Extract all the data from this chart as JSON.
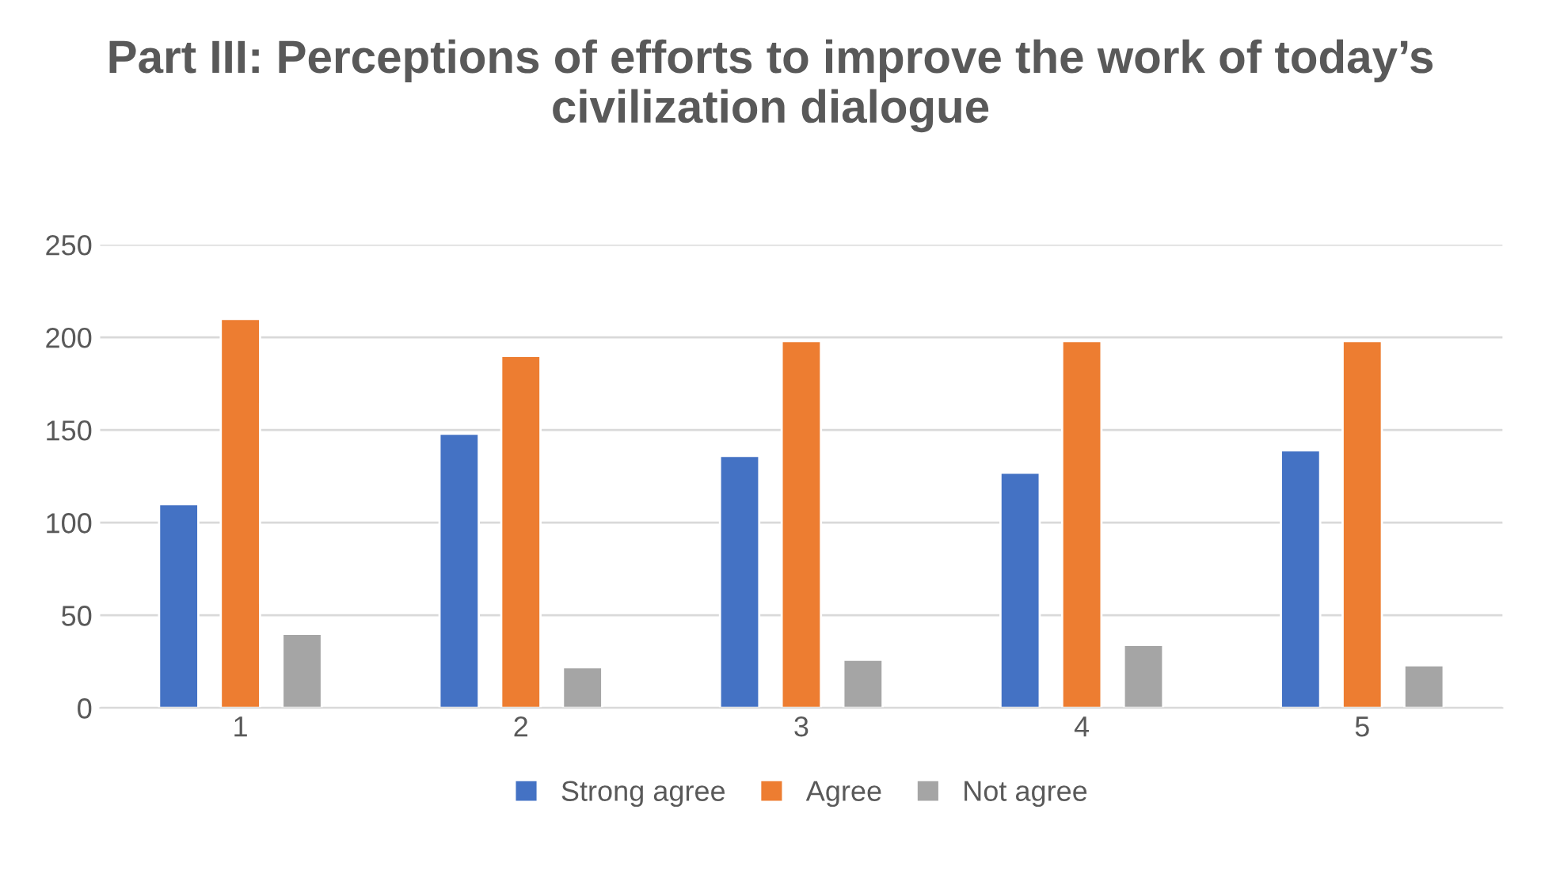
{
  "chart_data": {
    "type": "bar",
    "title": "Part III: Perceptions of efforts to improve the work of today’s civilization dialogue",
    "categories": [
      "1",
      "2",
      "3",
      "4",
      "5"
    ],
    "series": [
      {
        "name": "Strong agree",
        "color": "#4472c4",
        "values": [
          110,
          148,
          136,
          127,
          139
        ]
      },
      {
        "name": "Agree",
        "color": "#ed7d31",
        "values": [
          210,
          190,
          198,
          198,
          198
        ]
      },
      {
        "name": "Not agree",
        "color": "#a5a5a5",
        "values": [
          40,
          22,
          26,
          34,
          23
        ]
      }
    ],
    "ylim": [
      0,
      250
    ],
    "yticks": [
      0,
      50,
      100,
      150,
      200,
      250
    ],
    "grid": "y",
    "legend": "bottom"
  }
}
